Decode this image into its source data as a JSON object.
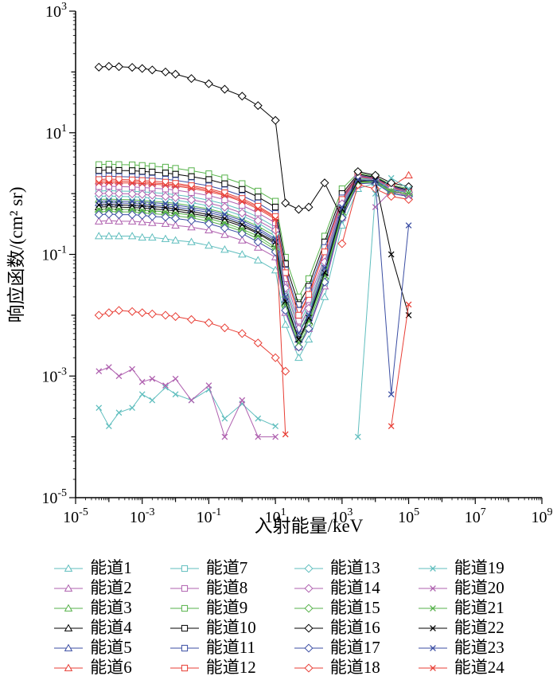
{
  "figure": {
    "background": "#ffffff"
  },
  "chart_data": {
    "type": "line",
    "title": "",
    "xlabel": "入射能量/keV",
    "ylabel": "响应函数/(cm² sr)",
    "xscale": "log",
    "yscale": "log",
    "xlim": [
      1e-05,
      1000000000.0
    ],
    "ylim": [
      1e-05,
      1000.0
    ],
    "grid": false,
    "legend_position": "bottom",
    "x_ticks": {
      "base": 10,
      "exponents": [
        -5,
        -3,
        -1,
        1,
        3,
        5,
        7,
        9
      ]
    },
    "y_ticks": {
      "base": 10,
      "exponents": [
        -5,
        -3,
        -1,
        1,
        3
      ]
    },
    "x": [
      5e-05,
      0.0001,
      0.0002,
      0.0005,
      0.001,
      0.002,
      0.005,
      0.01,
      0.03,
      0.1,
      0.3,
      1,
      3,
      10,
      20,
      50,
      100,
      300,
      1000,
      3000,
      10000,
      30000,
      100000
    ],
    "series": [
      {
        "name": "能道1",
        "color": "#5FBEBE",
        "marker": "triangle",
        "values": [
          0.2,
          0.2,
          0.2,
          0.2,
          0.19,
          0.19,
          0.18,
          0.17,
          0.16,
          0.14,
          0.12,
          0.1,
          0.08,
          0.055,
          0.007,
          0.002,
          0.004,
          0.02,
          0.3,
          1.2,
          1.5,
          1.0,
          0.9
        ]
      },
      {
        "name": "能道2",
        "color": "#AF60AF",
        "marker": "triangle",
        "values": [
          0.35,
          0.36,
          0.35,
          0.35,
          0.34,
          0.33,
          0.32,
          0.3,
          0.28,
          0.25,
          0.21,
          0.17,
          0.13,
          0.09,
          0.011,
          0.003,
          0.006,
          0.03,
          0.4,
          1.4,
          1.6,
          1.1,
          1.0
        ]
      },
      {
        "name": "能道3",
        "color": "#56B24A",
        "marker": "triangle",
        "values": [
          0.8,
          0.81,
          0.8,
          0.79,
          0.77,
          0.75,
          0.72,
          0.69,
          0.63,
          0.56,
          0.48,
          0.38,
          0.29,
          0.2,
          0.022,
          0.005,
          0.011,
          0.06,
          0.6,
          1.8,
          1.7,
          1.2,
          1.1
        ]
      },
      {
        "name": "能道4",
        "color": "#000000",
        "marker": "triangle",
        "values": [
          0.6,
          0.61,
          0.6,
          0.59,
          0.58,
          0.56,
          0.54,
          0.52,
          0.47,
          0.42,
          0.36,
          0.29,
          0.22,
          0.15,
          0.016,
          0.004,
          0.008,
          0.05,
          0.5,
          1.6,
          1.6,
          1.1,
          1.0
        ]
      },
      {
        "name": "能道5",
        "color": "#3B4EA3",
        "marker": "triangle",
        "values": [
          0.7,
          0.71,
          0.7,
          0.69,
          0.67,
          0.65,
          0.63,
          0.6,
          0.55,
          0.49,
          0.42,
          0.33,
          0.25,
          0.17,
          0.018,
          0.004,
          0.009,
          0.055,
          0.55,
          1.7,
          1.65,
          1.15,
          1.05
        ]
      },
      {
        "name": "能道6",
        "color": "#E83E35",
        "marker": "triangle",
        "values": [
          1.6,
          1.62,
          1.6,
          1.58,
          1.55,
          1.5,
          1.45,
          1.4,
          1.28,
          1.14,
          0.97,
          0.78,
          0.59,
          0.4,
          0.05,
          0.01,
          0.02,
          0.12,
          0.9,
          2.0,
          1.8,
          1.3,
          2.0
        ]
      },
      {
        "name": "能道7",
        "color": "#5FBEBE",
        "marker": "square",
        "values": [
          1.1,
          1.12,
          1.1,
          1.09,
          1.07,
          1.04,
          1.0,
          0.96,
          0.88,
          0.78,
          0.67,
          0.54,
          0.41,
          0.28,
          0.032,
          0.007,
          0.015,
          0.08,
          0.7,
          1.9,
          1.75,
          1.25,
          1.1
        ]
      },
      {
        "name": "能道8",
        "color": "#AF60AF",
        "marker": "square",
        "values": [
          1.3,
          1.32,
          1.3,
          1.29,
          1.26,
          1.23,
          1.19,
          1.14,
          1.04,
          0.93,
          0.79,
          0.64,
          0.48,
          0.33,
          0.04,
          0.008,
          0.018,
          0.09,
          0.75,
          1.95,
          1.8,
          1.3,
          1.15
        ]
      },
      {
        "name": "能道9",
        "color": "#56B24A",
        "marker": "square",
        "values": [
          3.0,
          3.05,
          3.0,
          2.97,
          2.9,
          2.82,
          2.72,
          2.6,
          2.38,
          2.12,
          1.81,
          1.46,
          1.1,
          0.75,
          0.09,
          0.02,
          0.04,
          0.2,
          1.2,
          2.2,
          1.9,
          1.4,
          1.2
        ]
      },
      {
        "name": "能道10",
        "color": "#000000",
        "marker": "square",
        "values": [
          2.4,
          2.44,
          2.4,
          2.38,
          2.32,
          2.26,
          2.18,
          2.08,
          1.9,
          1.7,
          1.45,
          1.17,
          0.88,
          0.6,
          0.07,
          0.015,
          0.03,
          0.16,
          1.0,
          2.1,
          1.85,
          1.35,
          1.15
        ]
      },
      {
        "name": "能道11",
        "color": "#3B4EA3",
        "marker": "square",
        "values": [
          1.9,
          1.93,
          1.9,
          1.88,
          1.84,
          1.79,
          1.72,
          1.65,
          1.51,
          1.34,
          1.15,
          0.92,
          0.7,
          0.47,
          0.055,
          0.012,
          0.025,
          0.13,
          0.85,
          2.0,
          1.8,
          1.3,
          1.1
        ]
      },
      {
        "name": "能道12",
        "color": "#E83E35",
        "marker": "square",
        "values": [
          1.7,
          1.73,
          1.7,
          1.68,
          1.64,
          1.6,
          1.54,
          1.47,
          1.35,
          1.2,
          1.03,
          0.83,
          0.62,
          0.42,
          0.05,
          0.01,
          0.022,
          0.11,
          0.8,
          1.95,
          1.75,
          1.28,
          1.05
        ]
      },
      {
        "name": "能道13",
        "color": "#5FBEBE",
        "marker": "diamond",
        "values": [
          0.9,
          0.91,
          0.9,
          0.89,
          0.87,
          0.84,
          0.81,
          0.78,
          0.71,
          0.63,
          0.54,
          0.43,
          0.33,
          0.22,
          0.026,
          0.006,
          0.012,
          0.07,
          0.65,
          1.85,
          1.7,
          1.2,
          1.05
        ]
      },
      {
        "name": "能道14",
        "color": "#AF60AF",
        "marker": "diamond",
        "values": [
          1.0,
          1.01,
          1.0,
          0.99,
          0.97,
          0.94,
          0.9,
          0.86,
          0.79,
          0.7,
          0.6,
          0.48,
          0.36,
          0.25,
          0.028,
          0.006,
          0.013,
          0.075,
          0.68,
          1.88,
          1.72,
          1.22,
          1.06
        ]
      },
      {
        "name": "能道15",
        "color": "#56B24A",
        "marker": "diamond",
        "values": [
          0.5,
          0.51,
          0.5,
          0.5,
          0.48,
          0.47,
          0.45,
          0.43,
          0.4,
          0.35,
          0.3,
          0.24,
          0.18,
          0.12,
          0.014,
          0.003,
          0.007,
          0.04,
          0.45,
          1.5,
          1.55,
          1.05,
          0.95
        ]
      },
      {
        "name": "能道16",
        "color": "#000000",
        "marker": "diamond",
        "values": [
          120,
          124,
          122,
          119,
          114,
          108,
          100,
          92,
          78,
          64,
          52,
          40,
          28,
          16,
          0.7,
          0.55,
          0.6,
          1.5,
          0.4,
          2.3,
          2.0,
          1.5,
          1.3
        ]
      },
      {
        "name": "能道17",
        "color": "#3B4EA3",
        "marker": "diamond",
        "values": [
          0.45,
          0.46,
          0.45,
          0.45,
          0.44,
          0.42,
          0.41,
          0.39,
          0.36,
          0.32,
          0.27,
          0.22,
          0.16,
          0.11,
          0.012,
          0.003,
          0.006,
          0.035,
          0.4,
          1.45,
          1.5,
          1.0,
          0.9
        ]
      },
      {
        "name": "能道18",
        "color": "#E83E35",
        "marker": "diamond",
        "values": [
          0.01,
          0.011,
          0.012,
          0.0115,
          0.011,
          0.0105,
          0.01,
          0.0095,
          0.0085,
          0.0075,
          0.0062,
          0.005,
          0.0035,
          0.002,
          0.0012,
          null,
          null,
          null,
          0.15,
          1.4,
          1.2,
          0.9,
          0.8
        ]
      },
      {
        "name": "能道19",
        "color": "#5FBEBE",
        "marker": "x",
        "values": [
          0.0003,
          0.00015,
          0.00025,
          0.0003,
          0.0005,
          0.0004,
          0.00065,
          0.0005,
          0.0004,
          0.0006,
          0.0002,
          0.00035,
          0.0002,
          0.00015,
          null,
          null,
          null,
          null,
          null,
          0.0001,
          1.0,
          1.8,
          1.2
        ]
      },
      {
        "name": "能道20",
        "color": "#AF60AF",
        "marker": "x",
        "values": [
          0.0012,
          0.0014,
          0.001,
          0.0013,
          0.0008,
          0.0009,
          0.0007,
          0.0009,
          0.0004,
          0.0007,
          0.0001,
          0.0004,
          0.0001,
          0.0001,
          null,
          null,
          null,
          null,
          null,
          null,
          0.6,
          1.1,
          0.9
        ]
      },
      {
        "name": "能道21",
        "color": "#56B24A",
        "marker": "x",
        "values": [
          0.55,
          0.56,
          0.55,
          0.55,
          0.53,
          0.52,
          0.5,
          0.48,
          0.44,
          0.39,
          0.33,
          0.26,
          0.2,
          0.13,
          0.015,
          0.0035,
          0.008,
          0.045,
          0.5,
          1.55,
          1.6,
          1.1,
          1.0
        ]
      },
      {
        "name": "能道22",
        "color": "#000000",
        "marker": "x",
        "values": [
          0.65,
          0.66,
          0.65,
          0.64,
          0.63,
          0.61,
          0.59,
          0.56,
          0.51,
          0.45,
          0.39,
          0.31,
          0.23,
          0.16,
          0.017,
          0.004,
          0.009,
          0.05,
          0.55,
          1.6,
          1.65,
          0.1,
          0.01
        ]
      },
      {
        "name": "能道23",
        "color": "#3B4EA3",
        "marker": "x",
        "values": [
          0.75,
          0.76,
          0.75,
          0.74,
          0.73,
          0.71,
          0.68,
          0.65,
          0.59,
          0.53,
          0.45,
          0.36,
          0.27,
          0.18,
          0.02,
          0.005,
          0.01,
          0.06,
          0.6,
          1.7,
          1.6,
          0.0005,
          0.3
        ]
      },
      {
        "name": "能道24",
        "color": "#E83E35",
        "marker": "x",
        "values": [
          1.5,
          1.51,
          1.5,
          1.49,
          1.46,
          1.43,
          1.38,
          1.33,
          1.22,
          1.08,
          0.93,
          0.74,
          0.56,
          0.38,
          0.00011,
          null,
          null,
          null,
          null,
          null,
          null,
          0.00015,
          0.015
        ]
      }
    ]
  }
}
